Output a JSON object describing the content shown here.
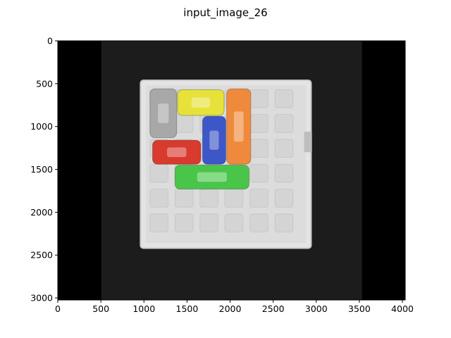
{
  "figure": {
    "title": "input_image_26"
  },
  "chart_data": {
    "type": "image",
    "title": "input_image_26",
    "xlabel": "",
    "ylabel": "",
    "xlim": [
      0,
      4032
    ],
    "ylim": [
      3024,
      0
    ],
    "x_ticks": [
      0,
      500,
      1000,
      1500,
      2000,
      2500,
      3000,
      3500,
      4000
    ],
    "y_ticks": [
      0,
      500,
      1000,
      1500,
      2000,
      2500,
      3000
    ],
    "grid": false,
    "colors": {
      "letterbox": "#000000",
      "background": "#1c1c1c",
      "board": "#e4e4e4",
      "board_edge": "#c8c8c8",
      "cell": "#d4d4d4",
      "car_gray": "#a8a8a8",
      "car_yellow": "#e6e23a",
      "car_blue": "#3d56c8",
      "car_orange": "#ef8a3c",
      "car_red": "#d93a2e",
      "car_green": "#49c64a"
    }
  }
}
